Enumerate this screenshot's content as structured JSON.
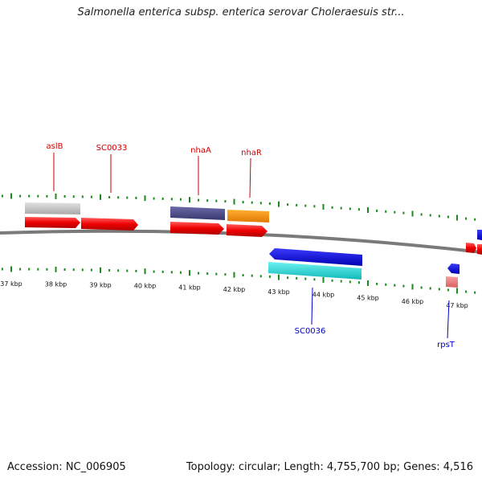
{
  "title": "Salmonella enterica subsp. enterica serovar Choleraesuis str...",
  "footer": {
    "accession": "Accession: NC_006905",
    "summary": "Topology: circular; Length: 4,755,700 bp; Genes: 4,516"
  },
  "colors": {
    "backbone": "#808080",
    "tick": "#1a8a1a",
    "forward_label": "#cc0000",
    "reverse_label": "#0000cc"
  },
  "ticks": [
    "37 kbp",
    "38 kbp",
    "39 kbp",
    "40 kbp",
    "41 kbp",
    "42 kbp",
    "43 kbp",
    "44 kbp",
    "45 kbp",
    "46 kbp",
    "47 kbp"
  ],
  "gene_labels": [
    {
      "text": "aslB",
      "strand": "forward"
    },
    {
      "text": "SC0033",
      "strand": "forward"
    },
    {
      "text": "nhaA",
      "strand": "forward"
    },
    {
      "text": "nhaR",
      "strand": "forward"
    },
    {
      "text": "SC0036",
      "strand": "reverse"
    },
    {
      "text": "rpsT",
      "strand": "reverse"
    }
  ]
}
